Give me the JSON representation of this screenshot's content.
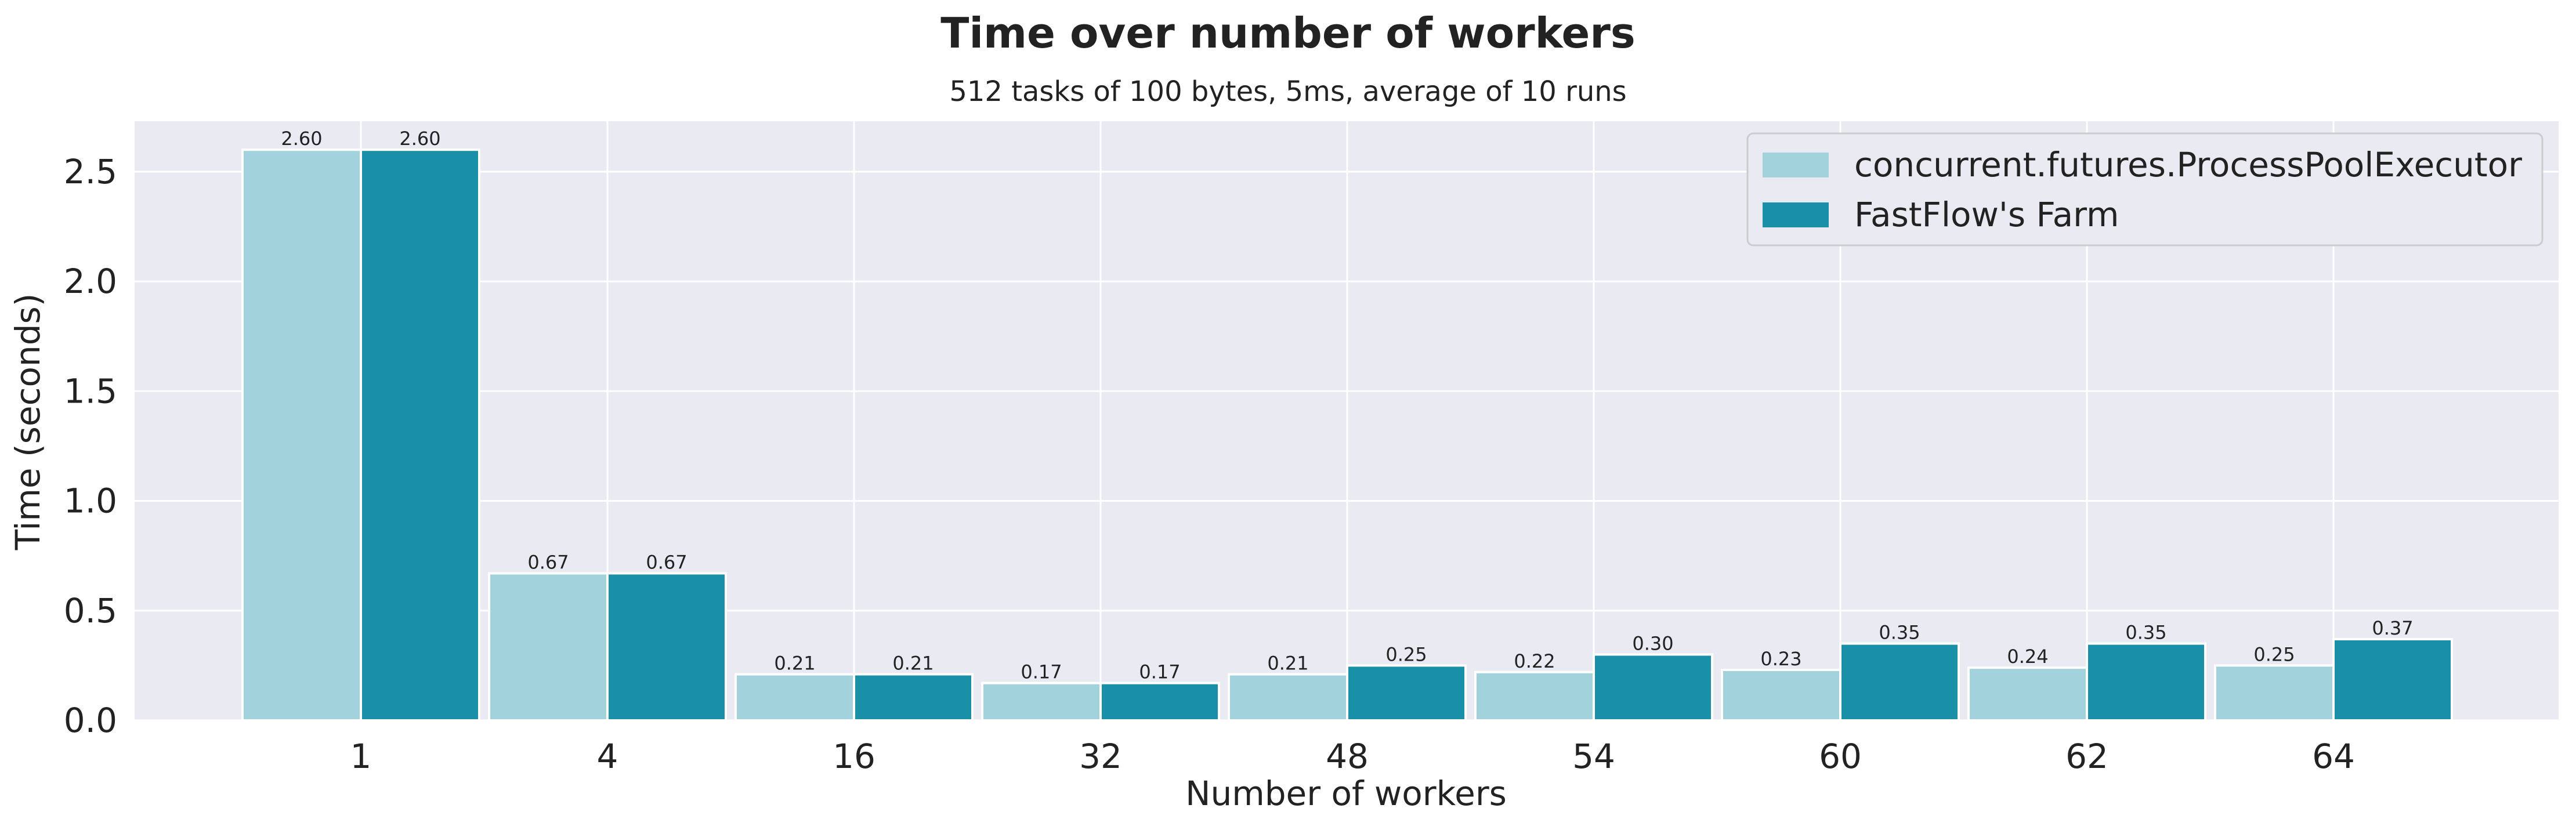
{
  "colors": {
    "plot_background": "#EAEAF2",
    "grid": "#FFFFFF",
    "series_1": "#A2D2DC",
    "series_2": "#1A8FA8",
    "text": "#222222"
  },
  "chart_data": {
    "type": "bar",
    "title": "Time over number of workers",
    "subtitle": "512 tasks of 100 bytes, 5ms, average of 10 runs",
    "xlabel": "Number of workers",
    "ylabel": "Time (seconds)",
    "categories": [
      "1",
      "4",
      "16",
      "32",
      "48",
      "54",
      "60",
      "62",
      "64"
    ],
    "series": [
      {
        "name": "concurrent.futures.ProcessPoolExecutor",
        "values": [
          2.6,
          0.67,
          0.21,
          0.17,
          0.21,
          0.22,
          0.23,
          0.24,
          0.25
        ],
        "value_labels": [
          "2.60",
          "0.67",
          "0.21",
          "0.17",
          "0.21",
          "0.22",
          "0.23",
          "0.24",
          "0.25"
        ]
      },
      {
        "name": "FastFlow's Farm",
        "values": [
          2.6,
          0.67,
          0.21,
          0.17,
          0.25,
          0.3,
          0.35,
          0.35,
          0.37
        ],
        "value_labels": [
          "2.60",
          "0.67",
          "0.21",
          "0.17",
          "0.25",
          "0.30",
          "0.35",
          "0.35",
          "0.37"
        ]
      }
    ],
    "ylim": [
      0,
      2.73
    ],
    "yticks": [
      0.0,
      0.5,
      1.0,
      1.5,
      2.0,
      2.5
    ],
    "ytick_labels": [
      "0.0",
      "0.5",
      "1.0",
      "1.5",
      "2.0",
      "2.5"
    ],
    "grid": true,
    "legend_position": "top-right"
  }
}
